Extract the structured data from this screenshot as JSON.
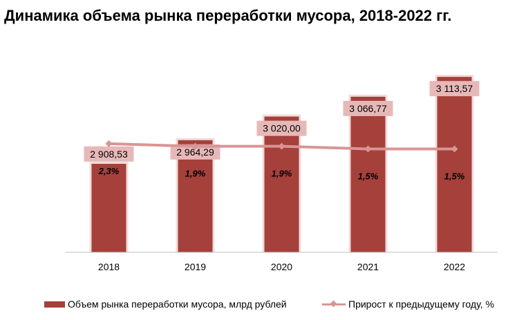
{
  "title": "Динамика объема рынка переработки мусора, 2018-2022 гг.",
  "colors": {
    "bar": "#a5403b",
    "bar_edge": "#f2dcdb",
    "line": "#d99594",
    "label_bg": "#e6b9b8",
    "axis": "#bfbfbf"
  },
  "chart_data": {
    "type": "bar",
    "categories": [
      "2018",
      "2019",
      "2020",
      "2021",
      "2022"
    ],
    "series": [
      {
        "name": "Объем рынка переработки мусора, млрд рублей",
        "type": "bar",
        "axis": "primary",
        "values": [
          2908.53,
          2964.29,
          3020.0,
          3066.77,
          3113.57
        ],
        "labels": [
          "2 908,53",
          "2 964,29",
          "3 020,00",
          "3 066,77",
          "3 113,57"
        ]
      },
      {
        "name": "Прирост к предыдущему году, %",
        "type": "line",
        "axis": "secondary",
        "values": [
          2.3,
          1.9,
          1.9,
          1.5,
          1.5
        ],
        "labels": [
          "2,3%",
          "1,9%",
          "1,9%",
          "1,5%",
          "1,5%"
        ]
      }
    ],
    "ylim": [
      2700,
      3140
    ],
    "y2lim": [
      -14,
      14
    ],
    "legend": "bottom",
    "grid": false
  }
}
